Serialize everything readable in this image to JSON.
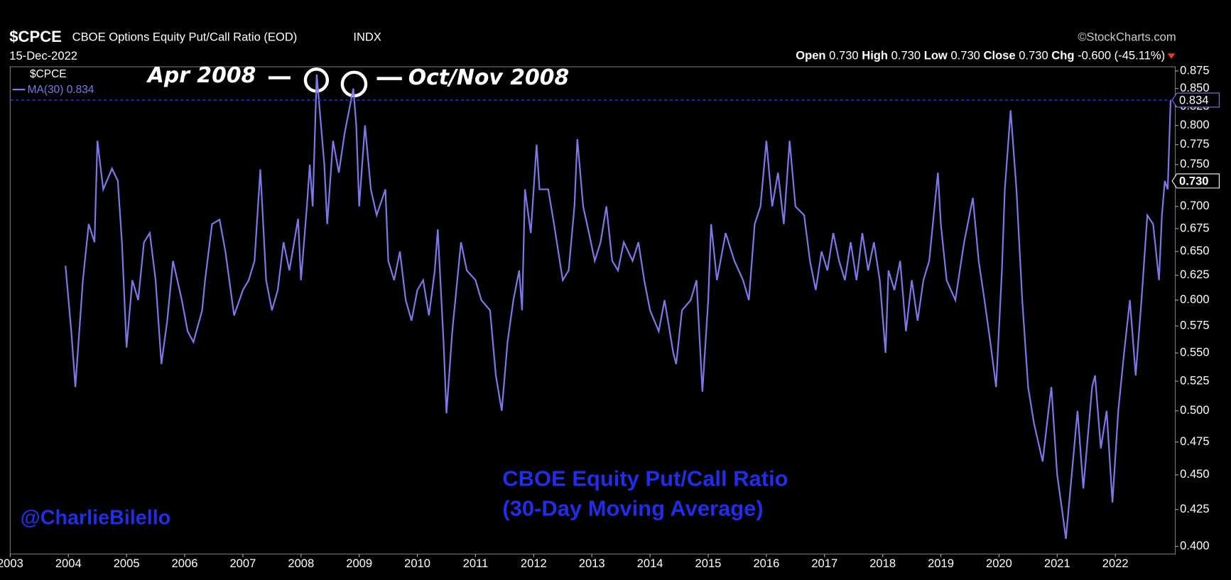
{
  "chart_data": {
    "type": "line",
    "symbol": "$CPCE",
    "title": "CBOE Options Equity Put/Call Ratio (EOD)",
    "exchange": "INDX",
    "date": "15-Dec-2022",
    "source": "©StockCharts.com",
    "quote": [
      {
        "label": "Open",
        "value": "0.730"
      },
      {
        "label": "High",
        "value": "0.730"
      },
      {
        "label": "Low",
        "value": "0.730"
      },
      {
        "label": "Close",
        "value": "0.730"
      },
      {
        "label": "Chg",
        "value": "-0.600 (-45.11%)"
      }
    ],
    "annotations": [
      "Apr 2008",
      "Oct/Nov 2008",
      "CBOE Equity Put/Call Ratio",
      "(30-Day Moving Average)",
      "@CharlieBilello"
    ],
    "log_scale": true,
    "grid": false,
    "xlim": [
      2003,
      2023.03
    ],
    "xticks": [
      2003,
      2004,
      2005,
      2006,
      2007,
      2008,
      2009,
      2010,
      2011,
      2012,
      2013,
      2014,
      2015,
      2016,
      2017,
      2018,
      2019,
      2020,
      2021,
      2022
    ],
    "ylim": [
      0.395,
      0.881
    ],
    "yticks": [
      {
        "value": 0.4,
        "label": "0.400"
      },
      0.425,
      {
        "value": 0.45,
        "label": "0.450"
      },
      0.475,
      {
        "value": 0.5,
        "label": "0.500"
      },
      0.525,
      {
        "value": 0.55,
        "label": "0.550"
      },
      0.575,
      {
        "value": 0.6,
        "label": "0.600"
      },
      0.625,
      {
        "value": 0.65,
        "label": "0.650"
      },
      0.675,
      {
        "value": 0.7,
        "label": "0.700"
      },
      0.725,
      {
        "value": 0.75,
        "label": "0.750"
      },
      0.775,
      {
        "value": 0.8,
        "label": "0.800"
      },
      0.825,
      {
        "value": 0.85,
        "label": "0.850"
      },
      0.875
    ],
    "price_markers": [
      0.834,
      {
        "value": 0.73,
        "label": "0.730"
      }
    ],
    "x": [
      2003.95,
      2004.05,
      2004.12,
      2004.25,
      2004.35,
      2004.45,
      2004.5,
      2004.6,
      2004.75,
      2004.85,
      2004.92,
      2005.0,
      2005.1,
      2005.2,
      2005.3,
      2005.4,
      2005.5,
      2005.6,
      2005.7,
      2005.8,
      2005.95,
      2006.05,
      2006.15,
      2006.3,
      2006.35,
      2006.47,
      2006.6,
      2006.7,
      2006.85,
      2007.0,
      2007.1,
      2007.2,
      2007.3,
      2007.4,
      2007.5,
      2007.6,
      2007.7,
      2007.8,
      2007.95,
      2008.0,
      2008.1,
      2008.15,
      2008.2,
      2008.27,
      2008.4,
      2008.45,
      2008.55,
      2008.65,
      2008.75,
      2008.9,
      2008.95,
      2009.0,
      2009.1,
      2009.2,
      2009.3,
      2009.45,
      2009.5,
      2009.6,
      2009.7,
      2009.8,
      2009.9,
      2010.0,
      2010.1,
      2010.2,
      2010.3,
      2010.35,
      2010.45,
      2010.5,
      2010.6,
      2010.75,
      2010.85,
      2011.0,
      2011.1,
      2011.25,
      2011.35,
      2011.45,
      2011.55,
      2011.65,
      2011.75,
      2011.8,
      2011.85,
      2011.95,
      2012.05,
      2012.1,
      2012.25,
      2012.35,
      2012.5,
      2012.6,
      2012.7,
      2012.75,
      2012.85,
      2012.95,
      2013.05,
      2013.15,
      2013.25,
      2013.35,
      2013.45,
      2013.55,
      2013.7,
      2013.8,
      2013.9,
      2014.0,
      2014.15,
      2014.25,
      2014.4,
      2014.45,
      2014.55,
      2014.7,
      2014.8,
      2014.9,
      2015.0,
      2015.05,
      2015.15,
      2015.3,
      2015.45,
      2015.6,
      2015.7,
      2015.8,
      2015.9,
      2016.0,
      2016.1,
      2016.2,
      2016.3,
      2016.4,
      2016.5,
      2016.65,
      2016.75,
      2016.85,
      2016.95,
      2017.05,
      2017.15,
      2017.25,
      2017.35,
      2017.45,
      2017.55,
      2017.65,
      2017.75,
      2017.85,
      2017.95,
      2018.05,
      2018.1,
      2018.2,
      2018.3,
      2018.4,
      2018.5,
      2018.6,
      2018.7,
      2018.8,
      2018.95,
      2019.0,
      2019.1,
      2019.25,
      2019.35,
      2019.4,
      2019.55,
      2019.65,
      2019.75,
      2019.85,
      2019.95,
      2020.05,
      2020.1,
      2020.2,
      2020.3,
      2020.4,
      2020.5,
      2020.6,
      2020.75,
      2020.85,
      2020.9,
      2021.0,
      2021.1,
      2021.15,
      2021.25,
      2021.35,
      2021.45,
      2021.6,
      2021.65,
      2021.75,
      2021.85,
      2021.95,
      2022.05,
      2022.15,
      2022.25,
      2022.35,
      2022.45,
      2022.55,
      2022.65,
      2022.75,
      2022.8,
      2022.85,
      2022.9,
      2022.95
    ],
    "series": [
      {
        "name": "MA(30)",
        "color": "#7b78e8",
        "values": [
          0.635,
          0.57,
          0.52,
          0.62,
          0.68,
          0.66,
          0.78,
          0.72,
          0.745,
          0.73,
          0.66,
          0.555,
          0.62,
          0.6,
          0.66,
          0.67,
          0.62,
          0.54,
          0.58,
          0.64,
          0.6,
          0.57,
          0.56,
          0.59,
          0.62,
          0.68,
          0.685,
          0.65,
          0.585,
          0.61,
          0.62,
          0.64,
          0.744,
          0.62,
          0.59,
          0.61,
          0.66,
          0.63,
          0.686,
          0.62,
          0.7,
          0.75,
          0.7,
          0.87,
          0.75,
          0.68,
          0.78,
          0.74,
          0.79,
          0.85,
          0.8,
          0.7,
          0.8,
          0.72,
          0.69,
          0.72,
          0.64,
          0.62,
          0.65,
          0.6,
          0.58,
          0.61,
          0.62,
          0.585,
          0.63,
          0.674,
          0.56,
          0.498,
          0.57,
          0.66,
          0.63,
          0.62,
          0.6,
          0.59,
          0.53,
          0.5,
          0.56,
          0.6,
          0.63,
          0.59,
          0.72,
          0.67,
          0.775,
          0.72,
          0.72,
          0.68,
          0.62,
          0.63,
          0.7,
          0.782,
          0.7,
          0.67,
          0.64,
          0.66,
          0.7,
          0.64,
          0.63,
          0.66,
          0.64,
          0.66,
          0.62,
          0.59,
          0.57,
          0.6,
          0.55,
          0.54,
          0.59,
          0.6,
          0.62,
          0.516,
          0.6,
          0.68,
          0.62,
          0.67,
          0.64,
          0.62,
          0.6,
          0.68,
          0.7,
          0.78,
          0.7,
          0.74,
          0.68,
          0.78,
          0.7,
          0.69,
          0.64,
          0.61,
          0.65,
          0.63,
          0.67,
          0.64,
          0.62,
          0.66,
          0.62,
          0.67,
          0.63,
          0.66,
          0.62,
          0.55,
          0.63,
          0.61,
          0.64,
          0.57,
          0.62,
          0.58,
          0.62,
          0.64,
          0.74,
          0.68,
          0.62,
          0.6,
          0.64,
          0.66,
          0.71,
          0.64,
          0.6,
          0.56,
          0.52,
          0.63,
          0.72,
          0.82,
          0.72,
          0.6,
          0.52,
          0.49,
          0.46,
          0.5,
          0.52,
          0.45,
          0.42,
          0.405,
          0.45,
          0.5,
          0.44,
          0.52,
          0.53,
          0.47,
          0.5,
          0.43,
          0.5,
          0.55,
          0.6,
          0.53,
          0.6,
          0.69,
          0.68,
          0.62,
          0.69,
          0.73,
          0.72,
          0.834
        ]
      }
    ]
  }
}
